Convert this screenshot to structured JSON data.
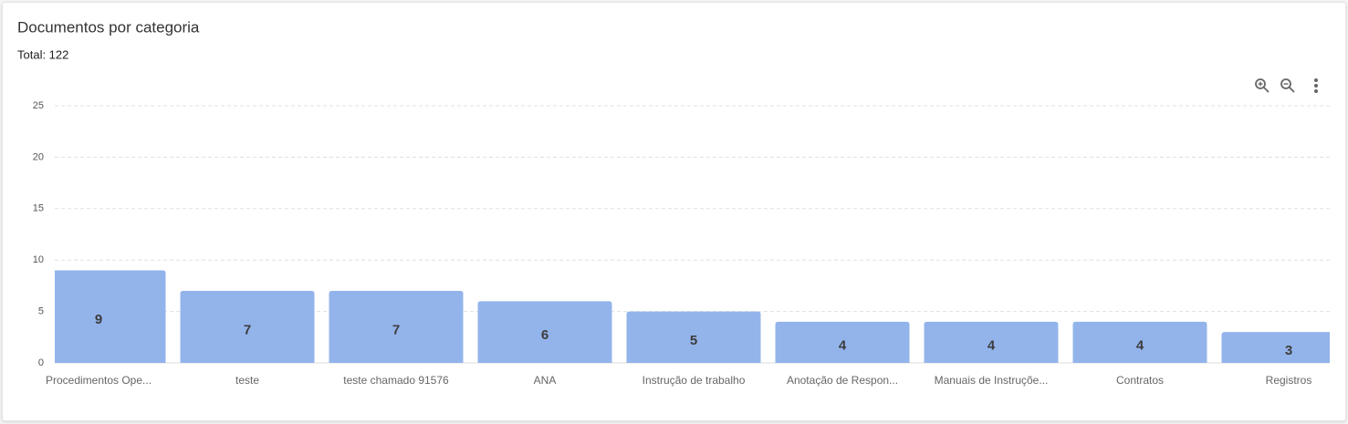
{
  "chart_data": {
    "type": "bar",
    "title": "Documentos por categoria",
    "subtitle": "Total: 122",
    "categories": [
      "Procedimentos Ope...",
      "teste",
      "teste chamado 91576",
      "ANA",
      "Instrução de trabalho",
      "Anotação de Respon...",
      "Manuais de Instruçõe...",
      "Contratos",
      "Registros"
    ],
    "values": [
      9,
      7,
      7,
      6,
      5,
      4,
      4,
      4,
      3
    ],
    "color": "#93b4eb",
    "ylim": [
      0,
      25
    ],
    "yticks": [
      0,
      5,
      10,
      15,
      20,
      25
    ],
    "grid": true
  }
}
